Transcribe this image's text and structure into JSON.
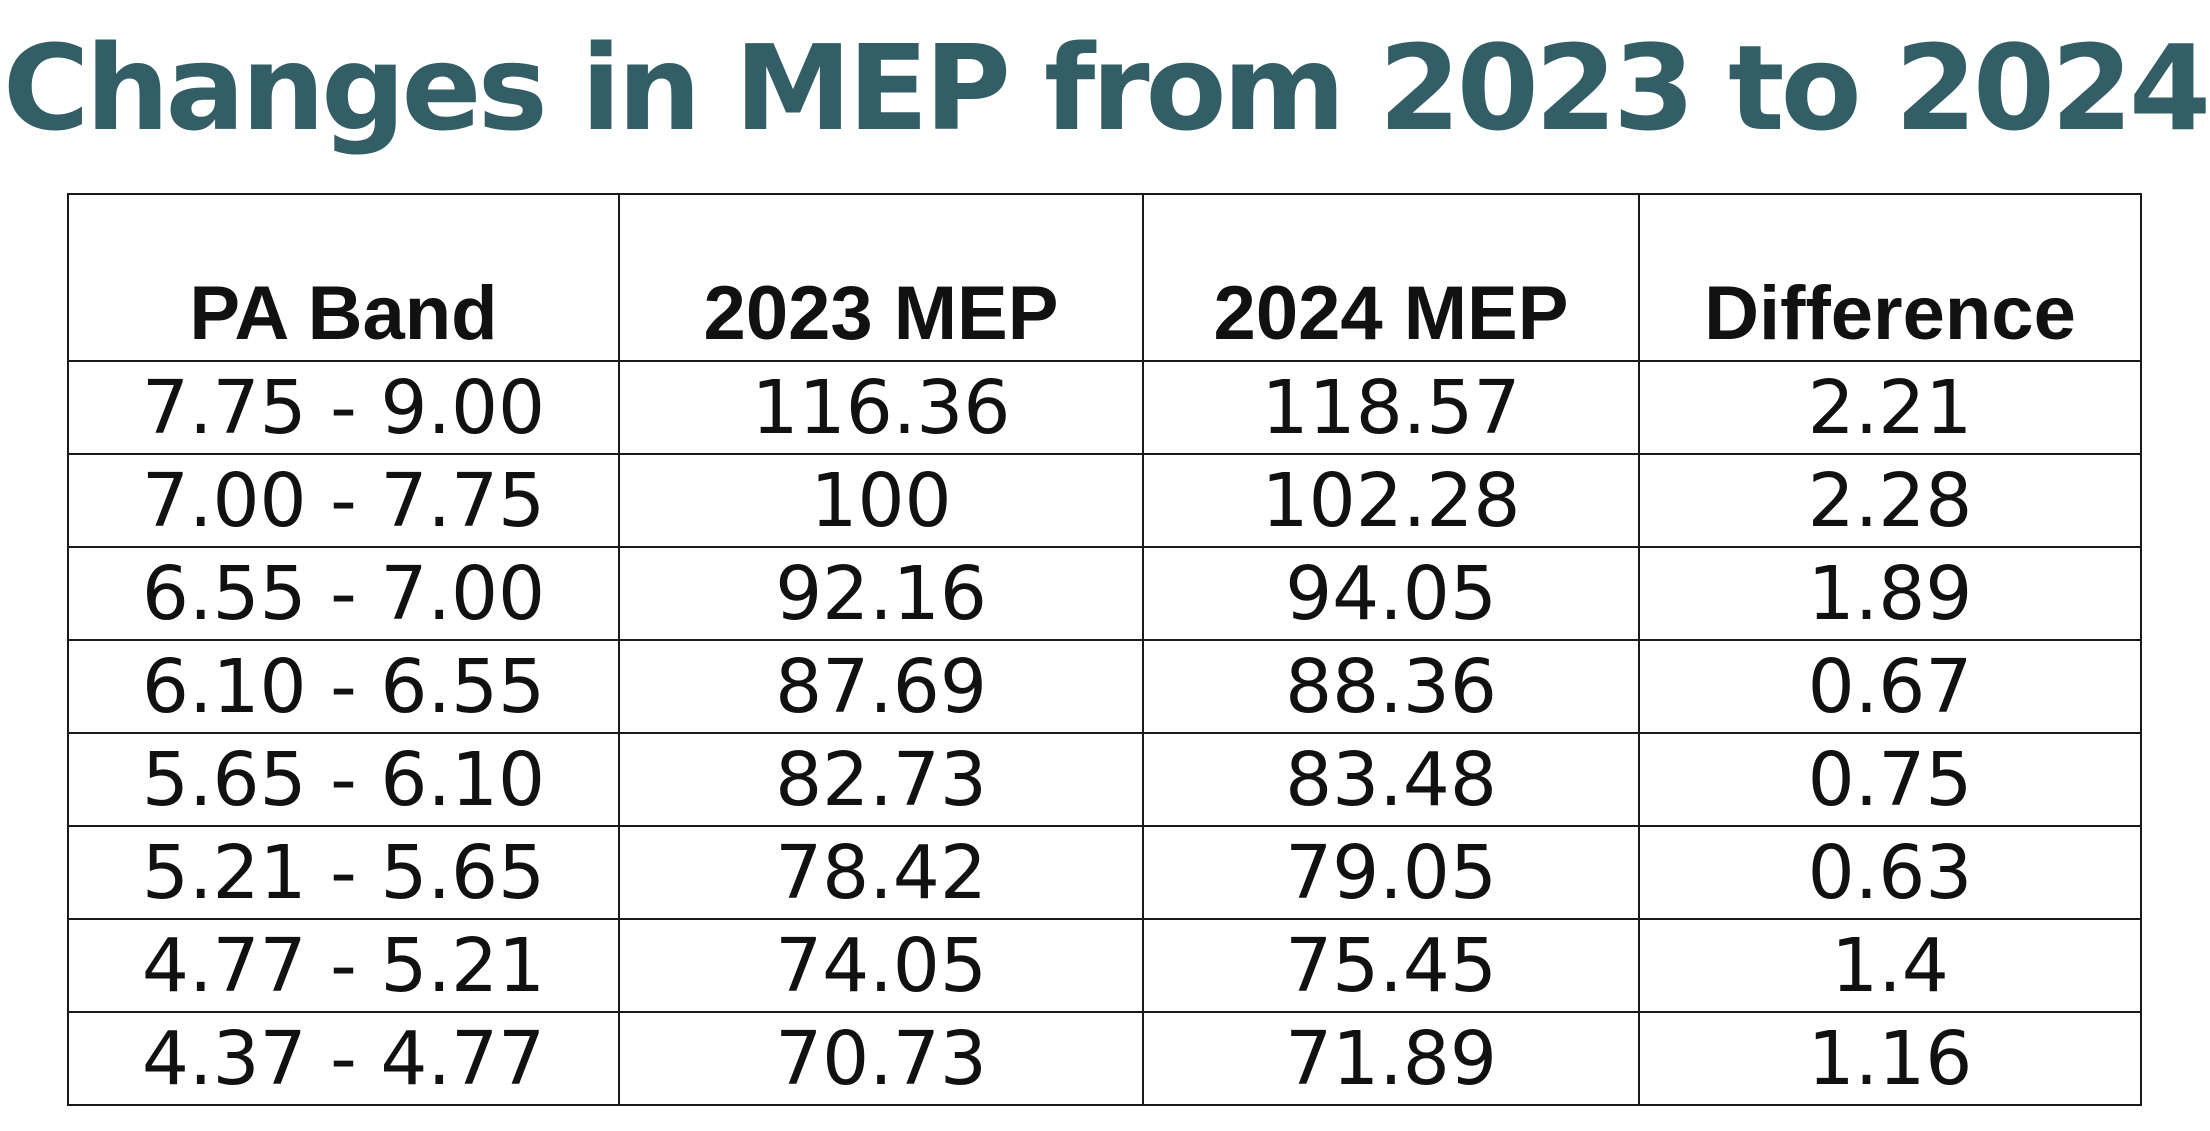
{
  "title": "Changes in MEP from 2023 to 2024",
  "colors": {
    "title": "#345e66",
    "text": "#111111",
    "border": "#1a1a1a"
  },
  "table": {
    "headers": [
      "PA Band",
      "2023 MEP",
      "2024 MEP",
      "Difference"
    ],
    "rows": [
      [
        "7.75 - 9.00",
        "116.36",
        "118.57",
        "2.21"
      ],
      [
        "7.00 - 7.75",
        "100",
        "102.28",
        "2.28"
      ],
      [
        "6.55 - 7.00",
        "92.16",
        "94.05",
        "1.89"
      ],
      [
        "6.10 - 6.55",
        "87.69",
        "88.36",
        "0.67"
      ],
      [
        "5.65 - 6.10",
        "82.73",
        "83.48",
        "0.75"
      ],
      [
        "5.21 - 5.65",
        "78.42",
        "79.05",
        "0.63"
      ],
      [
        "4.77 - 5.21",
        "74.05",
        "75.45",
        "1.4"
      ],
      [
        "4.37 - 4.77",
        "70.73",
        "71.89",
        "1.16"
      ]
    ]
  }
}
